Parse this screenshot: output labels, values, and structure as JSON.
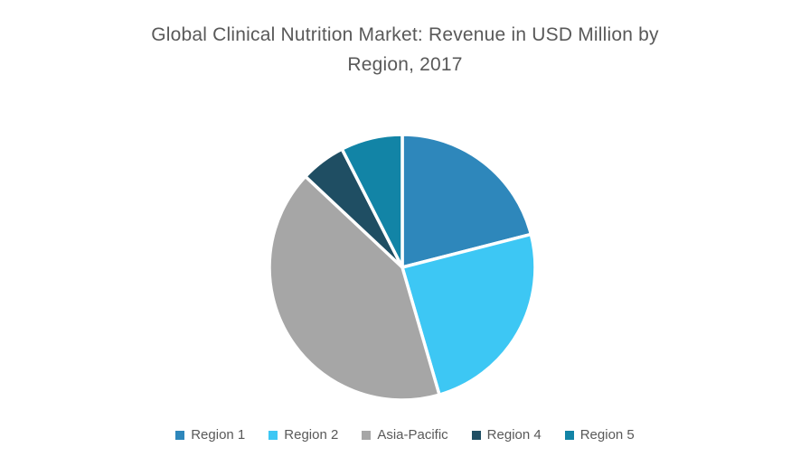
{
  "chart_data": {
    "type": "pie",
    "title": "Global Clinical Nutrition Market: Revenue in USD Million by Region, 2017",
    "title_lines": [
      "Global Clinical Nutrition Market: Revenue in USD Million by",
      "Region, 2017"
    ],
    "categories": [
      "Region 1",
      "Region 2",
      "Asia-Pacific",
      "Region 4",
      "Region 5"
    ],
    "values_percent": [
      21,
      24.5,
      41.5,
      5.5,
      7.5
    ],
    "colors": [
      "#2E87BB",
      "#3DC7F4",
      "#A6A6A6",
      "#1F4E63",
      "#1284A6"
    ],
    "slice_gap_color": "#FFFFFF",
    "start_angle_deg": 0,
    "direction": "clockwise",
    "legend_position": "bottom",
    "title_color": "#595959",
    "legend_text_color": "#595959",
    "data_labels_visible": false
  }
}
